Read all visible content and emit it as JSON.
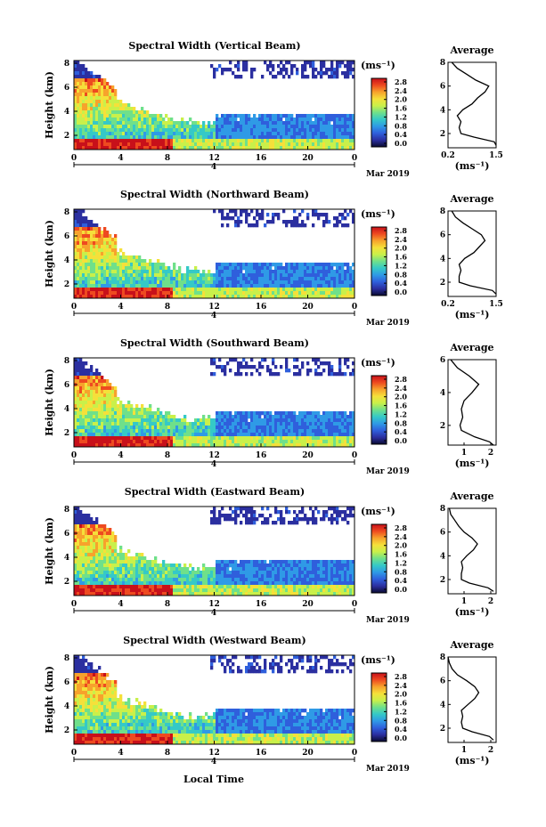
{
  "colorbar": {
    "unit": "(ms⁻¹)",
    "ticks": [
      "2.8",
      "2.4",
      "2.0",
      "1.6",
      "1.2",
      "0.8",
      "0.4",
      "0.0"
    ],
    "stops": [
      "#0a0a30",
      "#2b2fa0",
      "#2f5fdc",
      "#2f9ae6",
      "#35c9c7",
      "#6fe08a",
      "#c9f04a",
      "#f5e03a",
      "#f7a22c",
      "#ee4a20",
      "#c8101a"
    ]
  },
  "common": {
    "ylabel": "Height (km)",
    "x_ticks": [
      "0",
      "4",
      "8",
      "12",
      "16",
      "20",
      "0"
    ],
    "date_tick": "4",
    "date_label": "Mar 2019",
    "xlabel": "Local Time",
    "avg_title": "Average",
    "avg_unit": "(ms⁻¹)"
  },
  "y_ticks": [
    "8",
    "6",
    "4",
    "2"
  ],
  "chart_data": [
    {
      "type": "heatmap",
      "title": "Spectral Width (Vertical Beam)",
      "ylim": [
        0.8,
        8
      ],
      "x_range_hours": [
        0,
        24
      ],
      "avg_profile": {
        "xticks": [
          "0.2",
          "1.5"
        ],
        "xlim": [
          0.2,
          1.5
        ],
        "height": [
          1.0,
          1.3,
          1.7,
          2.0,
          2.5,
          3.0,
          3.5,
          4.0,
          4.5,
          5.0,
          5.5,
          6.0,
          6.5,
          7.0,
          7.5,
          8.0
        ],
        "width": [
          1.5,
          1.45,
          0.9,
          0.55,
          0.5,
          0.55,
          0.45,
          0.6,
          0.85,
          1.0,
          1.2,
          1.3,
          0.95,
          0.7,
          0.45,
          0.3
        ]
      }
    },
    {
      "type": "heatmap",
      "title": "Spectral Width (Northward Beam)",
      "ylim": [
        0.8,
        8
      ],
      "x_range_hours": [
        0,
        24
      ],
      "avg_profile": {
        "xticks": [
          "0.2",
          "1.5"
        ],
        "xlim": [
          0.2,
          1.5
        ],
        "height": [
          1.0,
          1.3,
          1.7,
          2.0,
          2.5,
          3.0,
          3.5,
          4.0,
          4.5,
          5.0,
          5.5,
          6.0,
          6.5,
          7.0,
          7.5,
          8.0
        ],
        "width": [
          1.5,
          1.4,
          0.8,
          0.5,
          0.5,
          0.55,
          0.5,
          0.65,
          0.9,
          1.05,
          1.2,
          1.1,
          0.85,
          0.6,
          0.4,
          0.3
        ]
      }
    },
    {
      "type": "heatmap",
      "title": "Spectral Width (Southward Beam)",
      "ylim": [
        0.8,
        6
      ],
      "x_range_hours": [
        0,
        24
      ],
      "avg_profile": {
        "xticks": [
          "1",
          "2"
        ],
        "xlim": [
          0.4,
          2.2
        ],
        "height": [
          0.8,
          1.0,
          1.3,
          1.7,
          2.0,
          2.5,
          3.0,
          3.5,
          4.0,
          4.5,
          5.0,
          5.5,
          6.0
        ],
        "width": [
          2.1,
          1.95,
          1.4,
          0.9,
          0.85,
          0.95,
          0.9,
          1.0,
          1.3,
          1.55,
          1.2,
          0.75,
          0.5
        ]
      }
    },
    {
      "type": "heatmap",
      "title": "Spectral Width (Eastward Beam)",
      "ylim": [
        0.8,
        8
      ],
      "x_range_hours": [
        0,
        24
      ],
      "avg_profile": {
        "xticks": [
          "1",
          "2"
        ],
        "xlim": [
          0.4,
          2.2
        ],
        "height": [
          1.0,
          1.3,
          1.7,
          2.0,
          2.5,
          3.0,
          3.5,
          4.0,
          4.5,
          5.0,
          5.5,
          6.0,
          6.5,
          7.0,
          7.5,
          8.0
        ],
        "width": [
          2.1,
          1.9,
          1.2,
          0.9,
          0.9,
          0.95,
          0.9,
          1.1,
          1.35,
          1.5,
          1.3,
          1.0,
          0.8,
          0.65,
          0.5,
          0.45
        ]
      }
    },
    {
      "type": "heatmap",
      "title": "Spectral Width (Westward Beam)",
      "ylim": [
        0.8,
        8
      ],
      "x_range_hours": [
        0,
        24
      ],
      "avg_profile": {
        "xticks": [
          "1",
          "2"
        ],
        "xlim": [
          0.4,
          2.2
        ],
        "height": [
          1.0,
          1.3,
          1.7,
          2.0,
          2.5,
          3.0,
          3.5,
          4.0,
          4.5,
          5.0,
          5.5,
          6.0,
          6.5,
          7.0,
          7.5,
          8.0
        ],
        "width": [
          2.1,
          1.95,
          1.3,
          0.95,
          0.9,
          0.95,
          0.9,
          1.15,
          1.4,
          1.55,
          1.4,
          1.1,
          0.75,
          0.55,
          0.45,
          0.4
        ]
      }
    }
  ]
}
